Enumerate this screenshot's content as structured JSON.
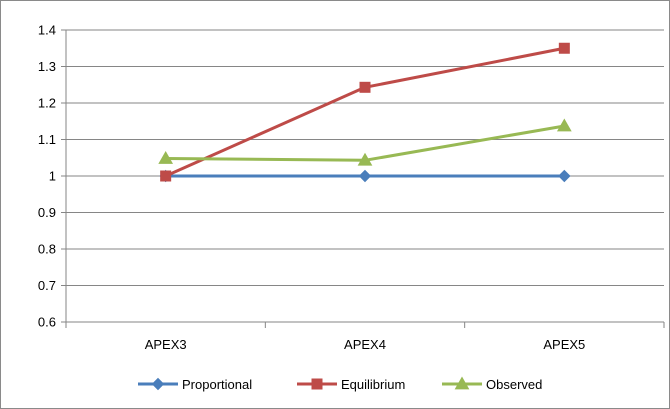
{
  "chart_data": {
    "type": "line",
    "title": "",
    "xlabel": "",
    "ylabel": "",
    "categories": [
      "APEX3",
      "APEX4",
      "APEX5"
    ],
    "ylim": [
      0.6,
      1.4
    ],
    "yticks": [
      "0.6",
      "0.7",
      "0.8",
      "0.9",
      "1",
      "1.1",
      "1.2",
      "1.3",
      "1.4"
    ],
    "grid": true,
    "legend_position": "bottom",
    "series": [
      {
        "name": "Proportional",
        "values": [
          1.0,
          1.0,
          1.0
        ],
        "color": "#4a7ebb",
        "marker": "diamond"
      },
      {
        "name": "Equilibrium",
        "values": [
          1.0,
          1.243,
          1.35
        ],
        "color": "#be4b48",
        "marker": "square"
      },
      {
        "name": "Observed",
        "values": [
          1.048,
          1.043,
          1.137
        ],
        "color": "#98b954",
        "marker": "triangle"
      }
    ]
  }
}
